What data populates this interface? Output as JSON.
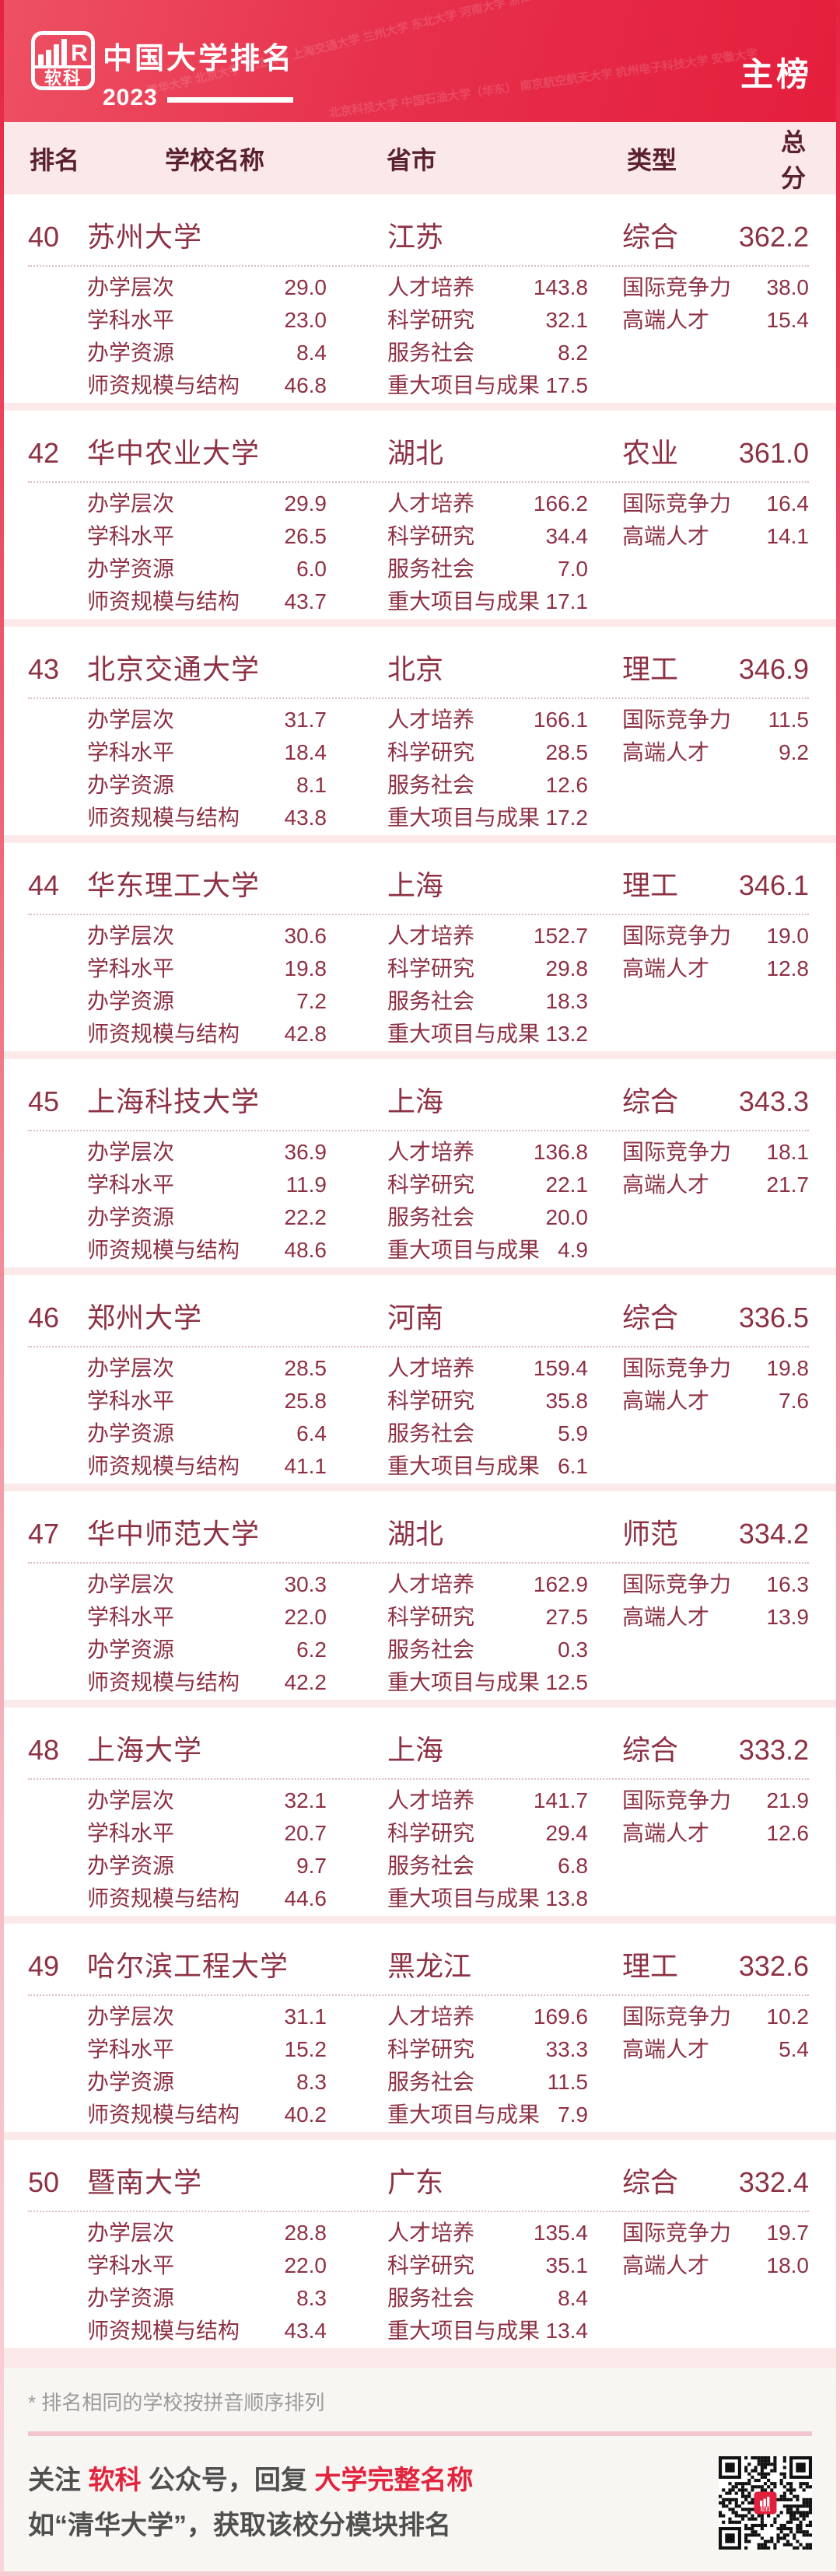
{
  "header": {
    "logo_text": "软科",
    "logo_r": "R",
    "title": "中国大学排名",
    "year": "2023",
    "badge": "主榜",
    "watermark1": "清华大学 北京大学 浙江大学 上海交通大学 兰州大学 东北大学 河南大学 浙江工业大学",
    "watermark2": "北京科技大学 中国石油大学（华东） 南京航空航天大学 杭州电子科技大学 安徽大学",
    "accent_color": "#e41e3c"
  },
  "table": {
    "columns": {
      "rank": "排名",
      "name": "学校名称",
      "province": "省市",
      "type": "类型",
      "score": "总分"
    },
    "metric_labels": {
      "g1": [
        "办学层次",
        "学科水平",
        "办学资源",
        "师资规模与结构"
      ],
      "g2": [
        "人才培养",
        "科学研究",
        "服务社会",
        "重大项目与成果"
      ],
      "g3": [
        "国际竞争力",
        "高端人才"
      ]
    },
    "rows": [
      {
        "rank": "40",
        "name": "苏州大学",
        "province": "江苏",
        "type": "综合",
        "score": "362.2",
        "g1": [
          "29.0",
          "23.0",
          "8.4",
          "46.8"
        ],
        "g2": [
          "143.8",
          "32.1",
          "8.2",
          "17.5"
        ],
        "g3": [
          "38.0",
          "15.4"
        ]
      },
      {
        "rank": "42",
        "name": "华中农业大学",
        "province": "湖北",
        "type": "农业",
        "score": "361.0",
        "g1": [
          "29.9",
          "26.5",
          "6.0",
          "43.7"
        ],
        "g2": [
          "166.2",
          "34.4",
          "7.0",
          "17.1"
        ],
        "g3": [
          "16.4",
          "14.1"
        ]
      },
      {
        "rank": "43",
        "name": "北京交通大学",
        "province": "北京",
        "type": "理工",
        "score": "346.9",
        "g1": [
          "31.7",
          "18.4",
          "8.1",
          "43.8"
        ],
        "g2": [
          "166.1",
          "28.5",
          "12.6",
          "17.2"
        ],
        "g3": [
          "11.5",
          "9.2"
        ]
      },
      {
        "rank": "44",
        "name": "华东理工大学",
        "province": "上海",
        "type": "理工",
        "score": "346.1",
        "g1": [
          "30.6",
          "19.8",
          "7.2",
          "42.8"
        ],
        "g2": [
          "152.7",
          "29.8",
          "18.3",
          "13.2"
        ],
        "g3": [
          "19.0",
          "12.8"
        ]
      },
      {
        "rank": "45",
        "name": "上海科技大学",
        "province": "上海",
        "type": "综合",
        "score": "343.3",
        "g1": [
          "36.9",
          "11.9",
          "22.2",
          "48.6"
        ],
        "g2": [
          "136.8",
          "22.1",
          "20.0",
          "4.9"
        ],
        "g3": [
          "18.1",
          "21.7"
        ]
      },
      {
        "rank": "46",
        "name": "郑州大学",
        "province": "河南",
        "type": "综合",
        "score": "336.5",
        "g1": [
          "28.5",
          "25.8",
          "6.4",
          "41.1"
        ],
        "g2": [
          "159.4",
          "35.8",
          "5.9",
          "6.1"
        ],
        "g3": [
          "19.8",
          "7.6"
        ]
      },
      {
        "rank": "47",
        "name": "华中师范大学",
        "province": "湖北",
        "type": "师范",
        "score": "334.2",
        "g1": [
          "30.3",
          "22.0",
          "6.2",
          "42.2"
        ],
        "g2": [
          "162.9",
          "27.5",
          "0.3",
          "12.5"
        ],
        "g3": [
          "16.3",
          "13.9"
        ]
      },
      {
        "rank": "48",
        "name": "上海大学",
        "province": "上海",
        "type": "综合",
        "score": "333.2",
        "g1": [
          "32.1",
          "20.7",
          "9.7",
          "44.6"
        ],
        "g2": [
          "141.7",
          "29.4",
          "6.8",
          "13.8"
        ],
        "g3": [
          "21.9",
          "12.6"
        ]
      },
      {
        "rank": "49",
        "name": "哈尔滨工程大学",
        "province": "黑龙江",
        "type": "理工",
        "score": "332.6",
        "g1": [
          "31.1",
          "15.2",
          "8.3",
          "40.2"
        ],
        "g2": [
          "169.6",
          "33.3",
          "11.5",
          "7.9"
        ],
        "g3": [
          "10.2",
          "5.4"
        ]
      },
      {
        "rank": "50",
        "name": "暨南大学",
        "province": "广东",
        "type": "综合",
        "score": "332.4",
        "g1": [
          "28.8",
          "22.0",
          "8.3",
          "43.4"
        ],
        "g2": [
          "135.4",
          "35.1",
          "8.4",
          "13.4"
        ],
        "g3": [
          "19.7",
          "18.0"
        ]
      }
    ]
  },
  "footnote": "* 排名相同的学校按拼音顺序排列",
  "footer": {
    "l1a": "关注 ",
    "l1b": "软科",
    "l1c": " 公众号，回复 ",
    "l1d": "大学完整名称",
    "line2": "如“清华大学”，获取该校分模块排名",
    "qr_logo": "软科"
  }
}
